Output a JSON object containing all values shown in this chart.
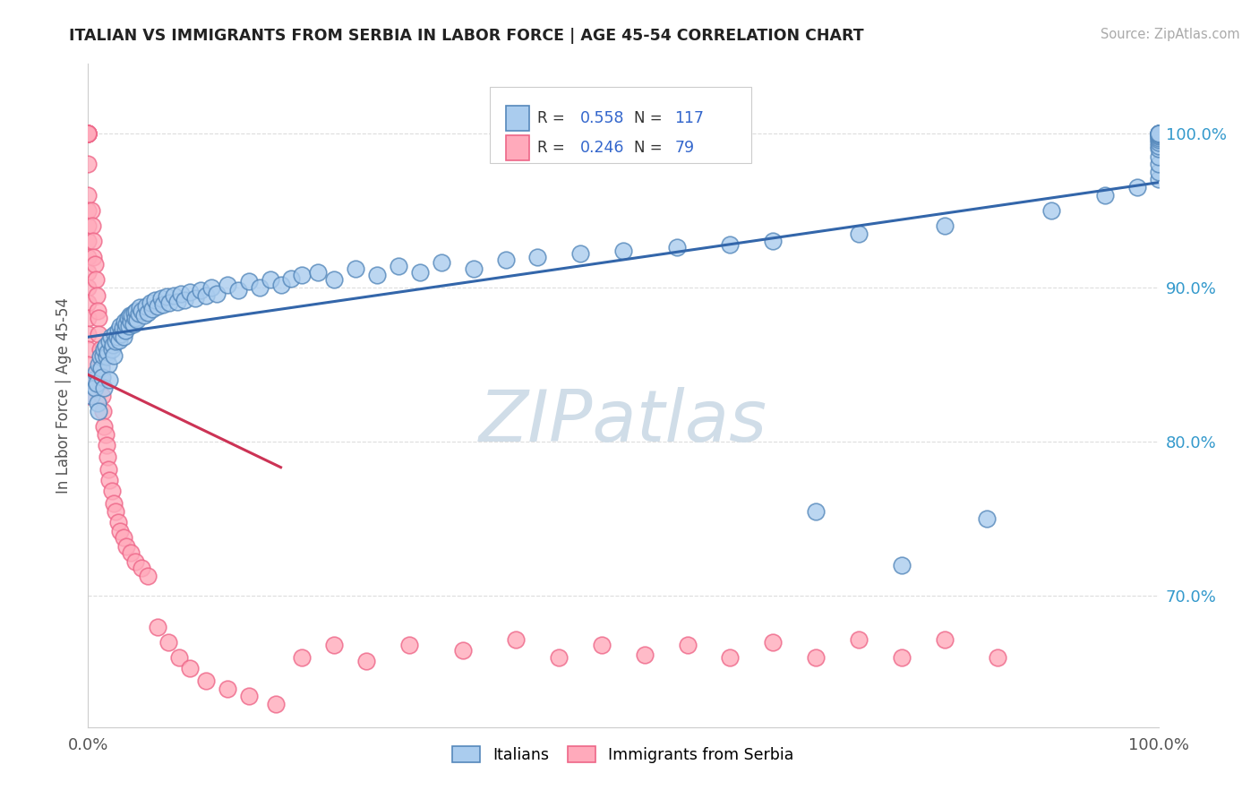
{
  "title": "ITALIAN VS IMMIGRANTS FROM SERBIA IN LABOR FORCE | AGE 45-54 CORRELATION CHART",
  "source": "Source: ZipAtlas.com",
  "ylabel": "In Labor Force | Age 45-54",
  "xmin": 0.0,
  "xmax": 1.0,
  "ymin": 0.615,
  "ymax": 1.045,
  "italian_R": 0.558,
  "italian_N": 117,
  "serbia_R": 0.246,
  "serbia_N": 79,
  "italian_color": "#aaccee",
  "italian_edge_color": "#5588bb",
  "serbia_color": "#ffaabb",
  "serbia_edge_color": "#ee6688",
  "trend_italian_color": "#3366aa",
  "trend_serbian_color": "#cc3355",
  "watermark_color": "#d0dde8",
  "legend_r_color": "#3366cc",
  "background_color": "#ffffff",
  "grid_color": "#dddddd",
  "title_color": "#222222",
  "y_tick_positions": [
    0.7,
    0.8,
    0.9,
    1.0
  ],
  "y_tick_labels": [
    "70.0%",
    "80.0%",
    "90.0%",
    "100.0%"
  ],
  "italian_x": [
    0.003,
    0.005,
    0.006,
    0.007,
    0.008,
    0.009,
    0.01,
    0.01,
    0.011,
    0.012,
    0.013,
    0.014,
    0.015,
    0.015,
    0.016,
    0.017,
    0.018,
    0.019,
    0.02,
    0.02,
    0.021,
    0.022,
    0.023,
    0.024,
    0.025,
    0.026,
    0.027,
    0.028,
    0.029,
    0.03,
    0.031,
    0.032,
    0.033,
    0.034,
    0.035,
    0.036,
    0.037,
    0.038,
    0.039,
    0.04,
    0.041,
    0.042,
    0.043,
    0.044,
    0.045,
    0.046,
    0.047,
    0.048,
    0.05,
    0.052,
    0.054,
    0.056,
    0.058,
    0.06,
    0.062,
    0.065,
    0.068,
    0.07,
    0.073,
    0.076,
    0.08,
    0.083,
    0.087,
    0.09,
    0.095,
    0.1,
    0.105,
    0.11,
    0.115,
    0.12,
    0.13,
    0.14,
    0.15,
    0.16,
    0.17,
    0.18,
    0.19,
    0.2,
    0.215,
    0.23,
    0.25,
    0.27,
    0.29,
    0.31,
    0.33,
    0.36,
    0.39,
    0.42,
    0.46,
    0.5,
    0.55,
    0.6,
    0.64,
    0.68,
    0.72,
    0.76,
    0.8,
    0.84,
    0.9,
    0.95,
    0.98,
    1.0,
    1.0,
    1.0,
    1.0,
    1.0,
    1.0,
    1.0,
    1.0,
    1.0,
    1.0,
    1.0,
    1.0,
    1.0,
    1.0,
    1.0,
    1.0
  ],
  "italian_y": [
    0.83,
    0.84,
    0.835,
    0.845,
    0.838,
    0.825,
    0.85,
    0.82,
    0.855,
    0.848,
    0.842,
    0.856,
    0.86,
    0.835,
    0.862,
    0.855,
    0.858,
    0.85,
    0.865,
    0.84,
    0.868,
    0.86,
    0.863,
    0.856,
    0.87,
    0.865,
    0.868,
    0.872,
    0.866,
    0.875,
    0.87,
    0.874,
    0.868,
    0.878,
    0.872,
    0.876,
    0.88,
    0.875,
    0.882,
    0.878,
    0.882,
    0.876,
    0.884,
    0.88,
    0.885,
    0.879,
    0.883,
    0.887,
    0.885,
    0.882,
    0.888,
    0.884,
    0.89,
    0.886,
    0.892,
    0.888,
    0.893,
    0.889,
    0.894,
    0.89,
    0.895,
    0.891,
    0.896,
    0.892,
    0.897,
    0.893,
    0.898,
    0.895,
    0.9,
    0.896,
    0.902,
    0.898,
    0.904,
    0.9,
    0.905,
    0.902,
    0.906,
    0.908,
    0.91,
    0.905,
    0.912,
    0.908,
    0.914,
    0.91,
    0.916,
    0.912,
    0.918,
    0.92,
    0.922,
    0.924,
    0.926,
    0.928,
    0.93,
    0.755,
    0.935,
    0.72,
    0.94,
    0.75,
    0.95,
    0.96,
    0.965,
    0.97,
    0.975,
    0.98,
    0.985,
    0.99,
    0.992,
    0.994,
    0.996,
    0.997,
    0.998,
    0.999,
    1.0,
    1.0,
    1.0,
    1.0,
    1.0
  ],
  "serbia_x": [
    0.0,
    0.0,
    0.0,
    0.0,
    0.0,
    0.0,
    0.0,
    0.0,
    0.0,
    0.0,
    0.0,
    0.0,
    0.0,
    0.0,
    0.0,
    0.0,
    0.0,
    0.0,
    0.0,
    0.0,
    0.0,
    0.0,
    0.003,
    0.004,
    0.005,
    0.005,
    0.006,
    0.007,
    0.008,
    0.009,
    0.01,
    0.01,
    0.011,
    0.012,
    0.012,
    0.013,
    0.014,
    0.015,
    0.016,
    0.017,
    0.018,
    0.019,
    0.02,
    0.022,
    0.024,
    0.026,
    0.028,
    0.03,
    0.033,
    0.036,
    0.04,
    0.044,
    0.05,
    0.056,
    0.065,
    0.075,
    0.085,
    0.095,
    0.11,
    0.13,
    0.15,
    0.175,
    0.2,
    0.23,
    0.26,
    0.3,
    0.35,
    0.4,
    0.44,
    0.48,
    0.52,
    0.56,
    0.6,
    0.64,
    0.68,
    0.72,
    0.76,
    0.8,
    0.85
  ],
  "serbia_y": [
    1.0,
    1.0,
    1.0,
    1.0,
    1.0,
    1.0,
    1.0,
    0.98,
    0.96,
    0.95,
    0.94,
    0.93,
    0.92,
    0.91,
    0.9,
    0.89,
    0.88,
    0.87,
    0.86,
    0.85,
    0.84,
    0.83,
    0.95,
    0.94,
    0.93,
    0.92,
    0.915,
    0.905,
    0.895,
    0.885,
    0.88,
    0.87,
    0.86,
    0.85,
    0.84,
    0.83,
    0.82,
    0.81,
    0.805,
    0.798,
    0.79,
    0.782,
    0.775,
    0.768,
    0.76,
    0.755,
    0.748,
    0.742,
    0.738,
    0.732,
    0.728,
    0.722,
    0.718,
    0.713,
    0.68,
    0.67,
    0.66,
    0.653,
    0.645,
    0.64,
    0.635,
    0.63,
    0.66,
    0.668,
    0.658,
    0.668,
    0.665,
    0.672,
    0.66,
    0.668,
    0.662,
    0.668,
    0.66,
    0.67,
    0.66,
    0.672,
    0.66,
    0.672,
    0.66
  ]
}
